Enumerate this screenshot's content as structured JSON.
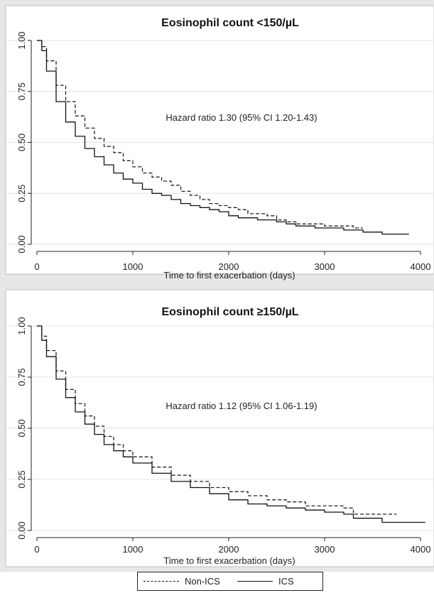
{
  "chart_data": [
    {
      "type": "line",
      "title": "Eosinophil count <150/µL",
      "xlabel": "Time to first exacerbation (days)",
      "ylabel": "",
      "xlim": [
        0,
        4000
      ],
      "ylim": [
        0,
        1
      ],
      "x_ticks": [
        0,
        1000,
        2000,
        3000,
        4000
      ],
      "y_ticks": [
        "0.00",
        "0.25",
        "0.50",
        "0.75",
        "1.00"
      ],
      "grid": "horizontal",
      "annotation": "Hazard ratio 1.30 (95% CI 1.20-1.43)",
      "series": [
        {
          "name": "Non-ICS",
          "style": "dashed",
          "color": "#222222",
          "x": [
            0,
            50,
            100,
            200,
            300,
            400,
            500,
            600,
            700,
            800,
            900,
            1000,
            1100,
            1200,
            1300,
            1400,
            1500,
            1600,
            1700,
            1800,
            1900,
            2000,
            2100,
            2200,
            2300,
            2400,
            2500,
            2600,
            2700,
            3000,
            3300,
            3400
          ],
          "y": [
            1.0,
            0.97,
            0.9,
            0.78,
            0.7,
            0.63,
            0.57,
            0.52,
            0.48,
            0.45,
            0.41,
            0.38,
            0.35,
            0.33,
            0.31,
            0.29,
            0.26,
            0.24,
            0.22,
            0.2,
            0.19,
            0.18,
            0.17,
            0.15,
            0.15,
            0.14,
            0.12,
            0.11,
            0.1,
            0.09,
            0.08,
            0.08
          ]
        },
        {
          "name": "ICS",
          "style": "solid",
          "color": "#111111",
          "x": [
            0,
            50,
            100,
            200,
            300,
            400,
            500,
            600,
            700,
            800,
            900,
            1000,
            1100,
            1200,
            1300,
            1400,
            1500,
            1600,
            1700,
            1800,
            1900,
            2000,
            2100,
            2200,
            2300,
            2400,
            2500,
            2600,
            2700,
            2900,
            3000,
            3200,
            3400,
            3600,
            3880
          ],
          "y": [
            1.0,
            0.95,
            0.85,
            0.7,
            0.6,
            0.53,
            0.47,
            0.43,
            0.39,
            0.35,
            0.32,
            0.3,
            0.27,
            0.25,
            0.24,
            0.22,
            0.2,
            0.19,
            0.18,
            0.17,
            0.16,
            0.14,
            0.13,
            0.13,
            0.12,
            0.12,
            0.11,
            0.1,
            0.09,
            0.08,
            0.08,
            0.07,
            0.06,
            0.05,
            0.05
          ]
        }
      ]
    },
    {
      "type": "line",
      "title": "Eosinophil count ≥150/µL",
      "xlabel": "Time to first exacerbation (days)",
      "ylabel": "",
      "xlim": [
        0,
        4000
      ],
      "ylim": [
        0,
        1
      ],
      "x_ticks": [
        0,
        1000,
        2000,
        3000,
        4000
      ],
      "y_ticks": [
        "0.00",
        "0.25",
        "0.50",
        "0.75",
        "1.00"
      ],
      "grid": "horizontal",
      "annotation": "Hazard ratio 1.12 (95% CI 1.06-1.19)",
      "series": [
        {
          "name": "Non-ICS",
          "style": "dashed",
          "color": "#222222",
          "x": [
            0,
            50,
            100,
            200,
            300,
            400,
            500,
            600,
            700,
            800,
            900,
            1000,
            1200,
            1400,
            1600,
            1800,
            2000,
            2200,
            2400,
            2600,
            2800,
            3000,
            3200,
            3300,
            3500,
            3750
          ],
          "y": [
            1.0,
            0.95,
            0.88,
            0.78,
            0.69,
            0.62,
            0.56,
            0.51,
            0.46,
            0.42,
            0.39,
            0.36,
            0.31,
            0.27,
            0.24,
            0.21,
            0.19,
            0.17,
            0.15,
            0.14,
            0.12,
            0.12,
            0.11,
            0.08,
            0.08,
            0.08
          ]
        },
        {
          "name": "ICS",
          "style": "solid",
          "color": "#111111",
          "x": [
            0,
            50,
            100,
            200,
            300,
            400,
            500,
            600,
            700,
            800,
            900,
            1000,
            1200,
            1400,
            1600,
            1800,
            2000,
            2200,
            2400,
            2600,
            2800,
            3000,
            3200,
            3300,
            3400,
            3600,
            3800,
            4050
          ],
          "y": [
            1.0,
            0.93,
            0.85,
            0.74,
            0.65,
            0.58,
            0.52,
            0.47,
            0.42,
            0.39,
            0.36,
            0.33,
            0.28,
            0.24,
            0.21,
            0.18,
            0.15,
            0.13,
            0.12,
            0.11,
            0.1,
            0.09,
            0.08,
            0.06,
            0.06,
            0.04,
            0.04,
            0.04
          ]
        }
      ]
    }
  ],
  "legend": {
    "items": [
      {
        "label": "Non-ICS",
        "style": "dashed"
      },
      {
        "label": "ICS",
        "style": "solid"
      }
    ]
  }
}
